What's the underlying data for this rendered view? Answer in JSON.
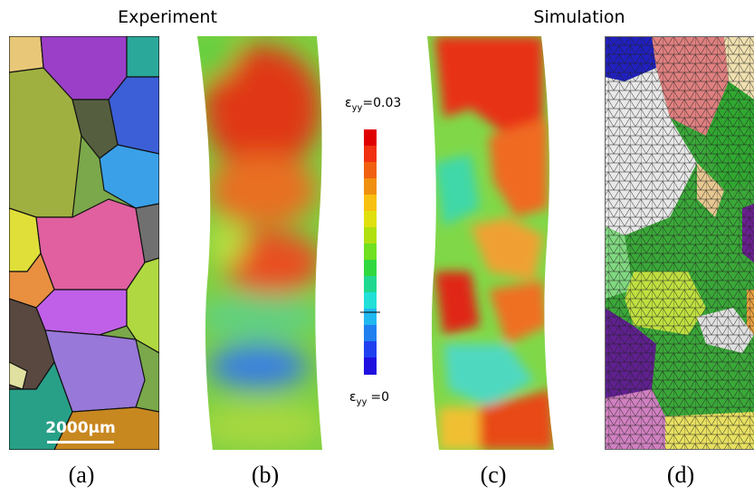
{
  "headers": {
    "experiment": "Experiment",
    "simulation": "Simulation"
  },
  "colorbar": {
    "max": {
      "symbol": "ε",
      "subscript": "yy",
      "text": "=0.03"
    },
    "min": {
      "symbol": "ε",
      "subscript": "yy",
      "text": "=0"
    }
  },
  "scale_bar": "2000μm",
  "panels": [
    "(a)",
    "(b)",
    "(c)",
    "(d)"
  ]
}
